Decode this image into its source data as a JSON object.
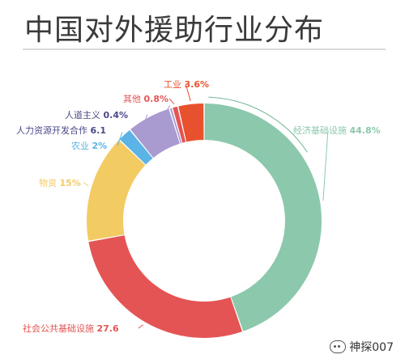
{
  "watermark": {
    "text": "神探007",
    "icon": "wechat-icon"
  },
  "chart_data": {
    "type": "pie",
    "style": "donut",
    "title": "中国对外援助行业分布",
    "series": [
      {
        "name": "经济基础设施",
        "value": 44.8,
        "label": "经济基础设施 44.8%",
        "color": "#8cc8ac"
      },
      {
        "name": "社会公共基础设施",
        "value": 27.6,
        "label": "社会公共基础设施 27.6",
        "color": "#e45454"
      },
      {
        "name": "物资",
        "value": 15,
        "label": "物资 15%",
        "color": "#f3cb63"
      },
      {
        "name": "农业",
        "value": 2,
        "label": "农业 2%",
        "color": "#5bb3e6"
      },
      {
        "name": "人力资源开发合作",
        "value": 6.1,
        "label": "人力资源开发合作 6.1",
        "color": "#a99ad0"
      },
      {
        "name": "人道主义",
        "value": 0.4,
        "label": "人道主义 0.4%",
        "color": "#a99ad0"
      },
      {
        "name": "其他",
        "value": 0.8,
        "label": "其他 0.8%",
        "color": "#e45454"
      },
      {
        "name": "工业",
        "value": 3.6,
        "label": "工业 3.6%",
        "color": "#e8512e"
      }
    ]
  }
}
